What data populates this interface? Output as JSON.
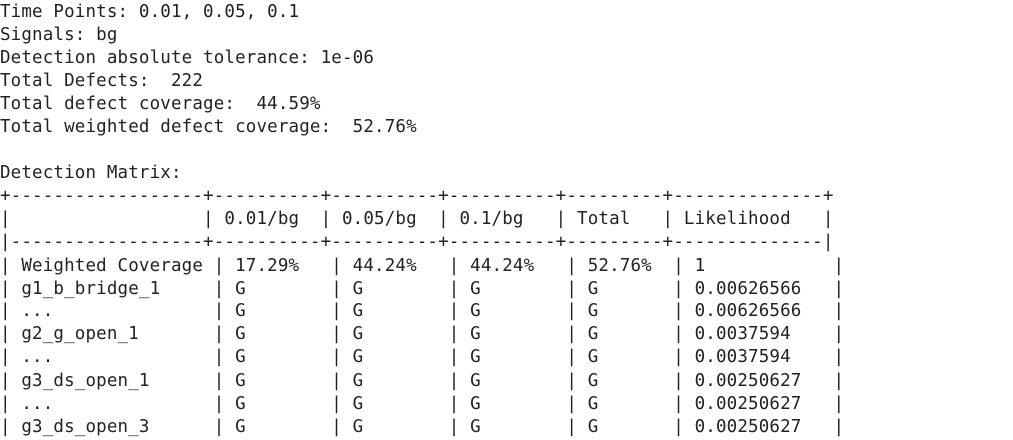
{
  "summary": {
    "time_points": "Time Points: 0.01, 0.05, 0.1",
    "signals": "Signals: bg",
    "tolerance": "Detection absolute tolerance: 1e-06",
    "total_defects": "Total Defects:  222",
    "defect_coverage": "Total defect coverage:  44.59%",
    "weighted_coverage": "Total weighted defect coverage:  52.76%"
  },
  "matrix": {
    "title": "Detection Matrix:",
    "border_top": "+------------------+----------+----------+----------+---------+--------------+",
    "header": "|                  | 0.01/bg  | 0.05/bg  | 0.1/bg   | Total   | Likelihood   |",
    "separator": "|------------------+----------+----------+----------+---------+--------------|",
    "rows": [
      "| Weighted Coverage | 17.29%   | 44.24%   | 44.24%   | 52.76%  | 1            |",
      "| g1_b_bridge_1     | G        | G        | G        | G       | 0.00626566   |",
      "| ...               | G        | G        | G        | G       | 0.00626566   |",
      "| g2_g_open_1       | G        | G        | G        | G       | 0.0037594    |",
      "| ...               | G        | G        | G        | G       | 0.0037594    |",
      "| g3_ds_open_1      | G        | G        | G        | G       | 0.00250627   |",
      "| ...               | G        | G        | G        | G       | 0.00250627   |",
      "| g3_ds_open_3      | G        | G        | G        | G       | 0.00250627   |"
    ]
  }
}
